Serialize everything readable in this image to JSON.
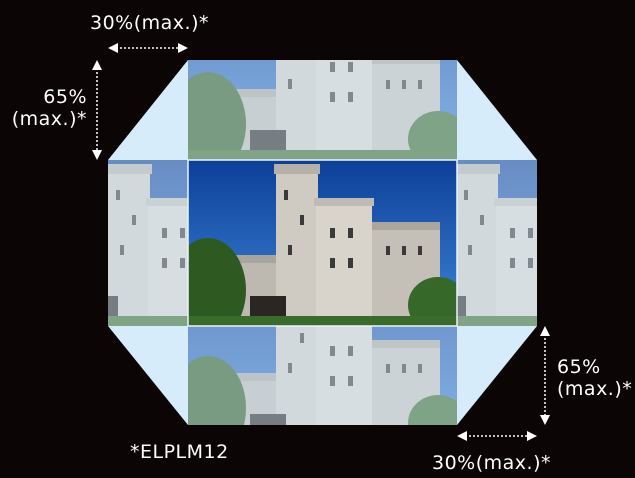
{
  "labels": {
    "top_horizontal": "30%(max.)*",
    "left_vertical_line1": "65%",
    "left_vertical_line2": "(max.)*",
    "right_vertical_line1": "65%",
    "right_vertical_line2": "(max.)*",
    "bottom_horizontal": "30%(max.)*",
    "model_note": "*ELPLM12"
  },
  "colors": {
    "background": "#0b0506",
    "shift_area": "#d7ecfb",
    "sky": "#2f6fc6",
    "sky_deep": "#0d3f98",
    "stone": "#c9c6c0",
    "tree": "#2e5a21",
    "arrow": "#ffffff"
  },
  "shift": {
    "horizontal_max_percent": 30,
    "vertical_max_percent": 65
  }
}
